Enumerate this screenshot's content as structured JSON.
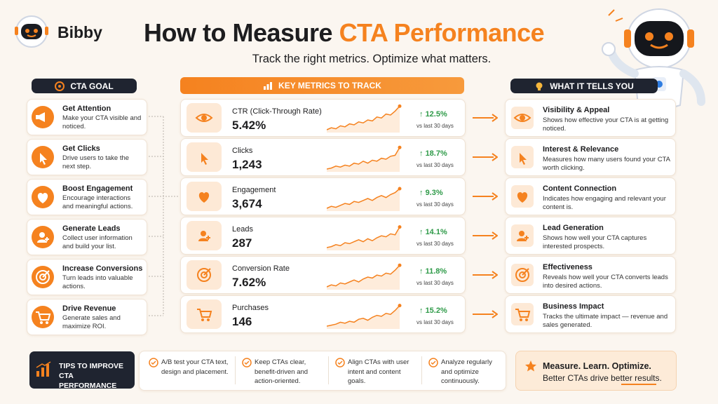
{
  "header": {
    "brand": "Bibby",
    "title_main": "How to Measure",
    "title_accent": "CTA Performance",
    "subtitle": "Track the right metrics. Optimize what matters."
  },
  "goals": {
    "heading": "CTA GOAL",
    "items": [
      {
        "title": "Get Attention",
        "desc": "Make your CTA visible and noticed."
      },
      {
        "title": "Get Clicks",
        "desc": "Drive users to take the next step."
      },
      {
        "title": "Boost Engagement",
        "desc": "Encourage interactions and meaningful actions."
      },
      {
        "title": "Generate Leads",
        "desc": "Collect user information and build your list."
      },
      {
        "title": "Increase Conversions",
        "desc": "Turn leads into valuable actions."
      },
      {
        "title": "Drive Revenue",
        "desc": "Generate sales and maximize ROI."
      }
    ]
  },
  "metrics": {
    "heading": "KEY METRICS TO TRACK",
    "items": [
      {
        "name": "CTR (Click-Through Rate)",
        "value": "5.42%",
        "change": "12.5%",
        "period": "vs last 30 days"
      },
      {
        "name": "Clicks",
        "value": "1,243",
        "change": "18.7%",
        "period": "vs last 30 days"
      },
      {
        "name": "Engagement",
        "value": "3,674",
        "change": "9.3%",
        "period": "vs last 30 days"
      },
      {
        "name": "Leads",
        "value": "287",
        "change": "14.1%",
        "period": "vs last 30 days"
      },
      {
        "name": "Conversion Rate",
        "value": "7.62%",
        "change": "11.8%",
        "period": "vs last 30 days"
      },
      {
        "name": "Purchases",
        "value": "146",
        "change": "15.2%",
        "period": "vs last 30 days"
      }
    ]
  },
  "insights": {
    "heading": "WHAT IT TELLS YOU",
    "items": [
      {
        "title": "Visibility & Appeal",
        "desc": "Shows how effective your CTA is at getting noticed."
      },
      {
        "title": "Interest & Relevance",
        "desc": "Measures how many users found your CTA worth clicking."
      },
      {
        "title": "Content Connection",
        "desc": "Indicates how engaging and relevant your content is."
      },
      {
        "title": "Lead Generation",
        "desc": "Shows how well your CTA captures interested prospects."
      },
      {
        "title": "Effectiveness",
        "desc": "Reveals how well your CTA converts leads into desired actions."
      },
      {
        "title": "Business Impact",
        "desc": "Tracks the ultimate impact — revenue and sales generated."
      }
    ]
  },
  "tips": {
    "heading": "TIPS TO IMPROVE CTA PERFORMANCE",
    "items": [
      "A/B test your CTA text, design and placement.",
      "Keep CTAs clear, benefit-driven and action-oriented.",
      "Align CTAs with user intent and content goals.",
      "Analyze regularly and optimize continuously."
    ]
  },
  "footer": {
    "title": "Measure. Learn. Optimize.",
    "text": "Better CTAs drive better results."
  }
}
